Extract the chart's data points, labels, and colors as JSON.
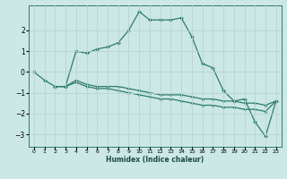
{
  "xlabel": "Humidex (Indice chaleur)",
  "ylabel": "",
  "background_color": "#cce8e5",
  "line_color": "#2d7b6e",
  "grid_color": "#b8d4d0",
  "xlim": [
    -0.5,
    23.5
  ],
  "ylim": [
    -3.6,
    3.2
  ],
  "yticks": [
    -3,
    -2,
    -1,
    0,
    1,
    2
  ],
  "xticks": [
    0,
    1,
    2,
    3,
    4,
    5,
    6,
    7,
    8,
    9,
    10,
    11,
    12,
    13,
    14,
    15,
    16,
    17,
    18,
    19,
    20,
    21,
    22,
    23
  ],
  "series1_x": [
    0,
    1,
    2,
    3,
    4,
    5,
    6,
    7,
    8,
    9,
    10,
    11,
    12,
    13,
    14,
    15,
    16,
    17,
    18,
    19,
    20,
    21,
    22,
    23
  ],
  "series1_y": [
    0.0,
    -0.4,
    -0.7,
    -0.7,
    1.0,
    0.9,
    1.1,
    1.2,
    1.4,
    2.0,
    2.9,
    2.5,
    2.5,
    2.5,
    2.6,
    1.7,
    0.4,
    0.2,
    -0.9,
    -1.4,
    -1.3,
    -2.4,
    -3.1,
    -1.4
  ],
  "series2_x": [
    2,
    3,
    4,
    5,
    6,
    7,
    8,
    9,
    10,
    11,
    12,
    13,
    14,
    15,
    16,
    17,
    18,
    19,
    20,
    21,
    22,
    23
  ],
  "series2_y": [
    -0.7,
    -0.7,
    -0.4,
    -0.6,
    -0.7,
    -0.7,
    -0.7,
    -0.8,
    -0.9,
    -1.0,
    -1.1,
    -1.1,
    -1.1,
    -1.2,
    -1.3,
    -1.3,
    -1.4,
    -1.4,
    -1.5,
    -1.5,
    -1.6,
    -1.4
  ],
  "series3_x": [
    2,
    3,
    4,
    5,
    6,
    7,
    8,
    9,
    10,
    11,
    12,
    13,
    14,
    15,
    16,
    17,
    18,
    19,
    20,
    21,
    22,
    23
  ],
  "series3_y": [
    -0.7,
    -0.7,
    -0.5,
    -0.7,
    -0.8,
    -0.8,
    -0.9,
    -1.0,
    -1.1,
    -1.2,
    -1.3,
    -1.3,
    -1.4,
    -1.5,
    -1.6,
    -1.6,
    -1.7,
    -1.7,
    -1.8,
    -1.8,
    -1.9,
    -1.4
  ]
}
